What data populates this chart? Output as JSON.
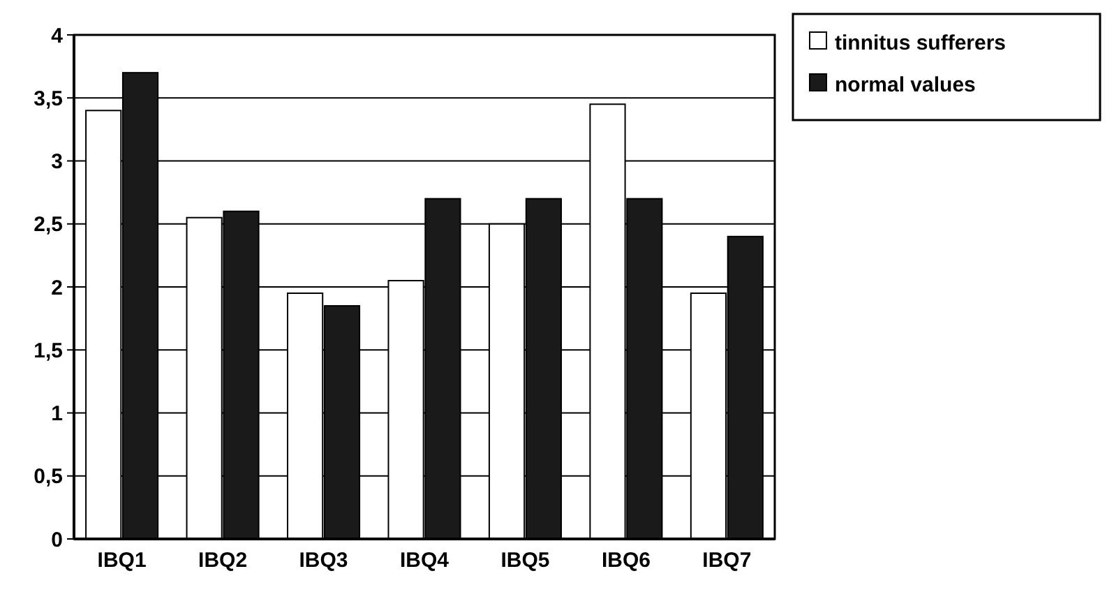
{
  "chart_data": {
    "type": "bar",
    "categories": [
      "IBQ1",
      "IBQ2",
      "IBQ3",
      "IBQ4",
      "IBQ5",
      "IBQ6",
      "IBQ7"
    ],
    "series": [
      {
        "name": "tinnitus sufferers",
        "color": "#ffffff",
        "values": [
          3.4,
          2.55,
          1.95,
          2.05,
          2.5,
          3.45,
          1.95
        ]
      },
      {
        "name": "normal values",
        "color": "#1a1a1a",
        "values": [
          3.7,
          2.6,
          1.85,
          2.7,
          2.7,
          2.7,
          2.4
        ]
      }
    ],
    "ylim": [
      0,
      4
    ],
    "yticks": [
      0,
      {
        "value": 0.5,
        "label": "0,5"
      },
      1,
      {
        "value": 1.5,
        "label": "1,5"
      },
      2,
      {
        "value": 2.5,
        "label": "2,5"
      },
      3,
      {
        "value": 3.5,
        "label": "3,5"
      },
      4
    ],
    "grid": "y",
    "legend": "top right"
  }
}
